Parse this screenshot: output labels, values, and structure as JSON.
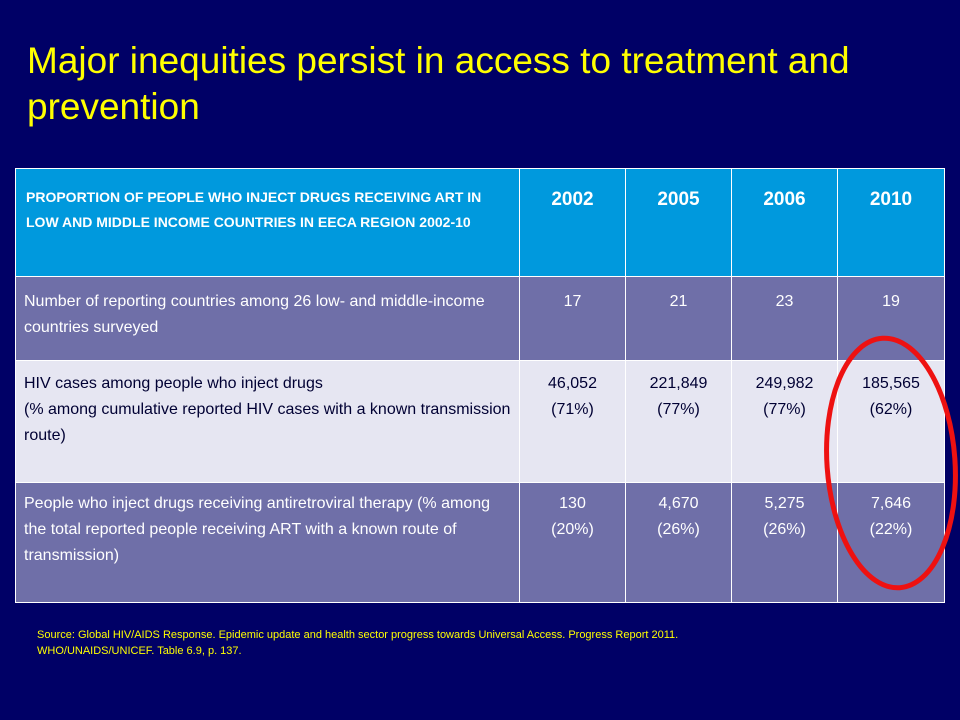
{
  "slide": {
    "title": "Major inequities persist in access to treatment and prevention",
    "source_line1": "Source: Global HIV/AIDS Response. Epidemic update and health sector progress towards Universal Access. Progress Report 2011.",
    "source_line2": "WHO/UNAIDS/UNICEF.  Table 6.9, p. 137."
  },
  "table": {
    "header_label": "PROPORTION OF PEOPLE WHO INJECT DRUGS RECEIVING ART IN LOW AND MIDDLE INCOME COUNTRIES IN EECA REGION 2002-10",
    "years": [
      "2002",
      "2005",
      "2006",
      "2010"
    ],
    "rows": [
      {
        "label": "Number of reporting countries among 26 low- and middle-income countries surveyed",
        "values": [
          {
            "v": "17",
            "p": ""
          },
          {
            "v": "21",
            "p": ""
          },
          {
            "v": "23",
            "p": ""
          },
          {
            "v": "19",
            "p": ""
          }
        ]
      },
      {
        "label_line1": "HIV cases among people who inject drugs",
        "label_line2": "(% among cumulative reported HIV cases with a known transmission route)",
        "values": [
          {
            "v": "46,052",
            "p": "(71%)"
          },
          {
            "v": "221,849",
            "p": "(77%)"
          },
          {
            "v": "249,982",
            "p": "(77%)"
          },
          {
            "v": "185,565",
            "p": "(62%)"
          }
        ]
      },
      {
        "label": "People who inject drugs receiving antiretroviral therapy (% among the total reported people receiving ART with a known route of transmission)",
        "values": [
          {
            "v": "130",
            "p": "(20%)"
          },
          {
            "v": "4,670",
            "p": "(26%)"
          },
          {
            "v": "5,275",
            "p": "(26%)"
          },
          {
            "v": "7,646",
            "p": "(22%)"
          }
        ]
      }
    ]
  },
  "colors": {
    "background": "#000066",
    "title": "#ffff00",
    "header": "#0099dd",
    "row_dark": "#6f6fa8",
    "row_light": "#e6e6f2",
    "highlight_ellipse": "#ee1111"
  }
}
